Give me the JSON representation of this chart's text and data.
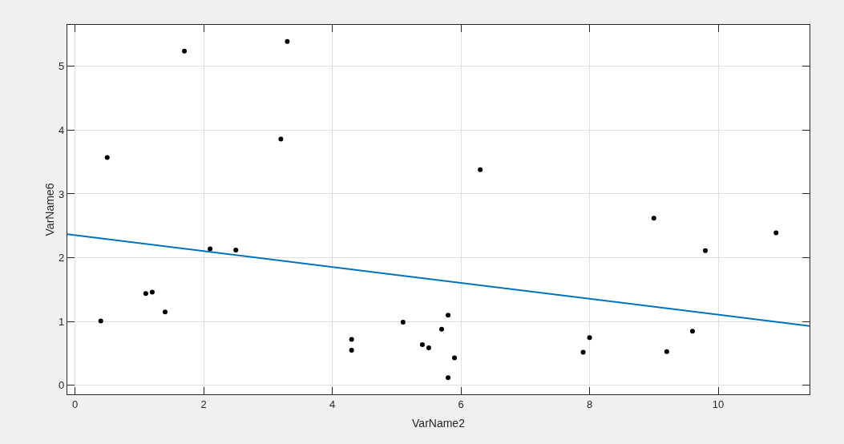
{
  "chart_data": {
    "type": "scatter",
    "marker": "circle",
    "xlabel": "VarName2",
    "ylabel": "VarName6",
    "xlim": [
      -0.12,
      11.42
    ],
    "ylim": [
      -0.14,
      5.65
    ],
    "xticks": [
      0,
      2,
      4,
      6,
      8,
      10
    ],
    "yticks": [
      0,
      1,
      2,
      3,
      4,
      5
    ],
    "grid": true,
    "series": [
      {
        "color": "#000000",
        "x": [
          0.4,
          0.5,
          1.1,
          1.2,
          1.4,
          1.7,
          2.1,
          2.5,
          3.2,
          3.3,
          4.3,
          4.3,
          5.1,
          5.4,
          5.5,
          5.7,
          5.8,
          5.8,
          5.9,
          6.3,
          7.9,
          8.0,
          9.0,
          9.2,
          9.6,
          9.8,
          10.9
        ],
        "values": [
          1.01,
          3.57,
          1.44,
          1.46,
          1.15,
          5.24,
          2.14,
          2.12,
          3.86,
          5.39,
          0.72,
          0.55,
          0.99,
          0.64,
          0.59,
          0.88,
          1.1,
          0.12,
          0.43,
          3.38,
          0.52,
          0.75,
          2.62,
          0.53,
          0.85,
          2.11,
          2.39
        ]
      },
      {
        "type": "line",
        "color": "#0072bd",
        "marker": "none",
        "line_style": "solid",
        "x": [
          -0.12,
          11.42
        ],
        "values": [
          2.37,
          0.93
        ]
      }
    ]
  }
}
